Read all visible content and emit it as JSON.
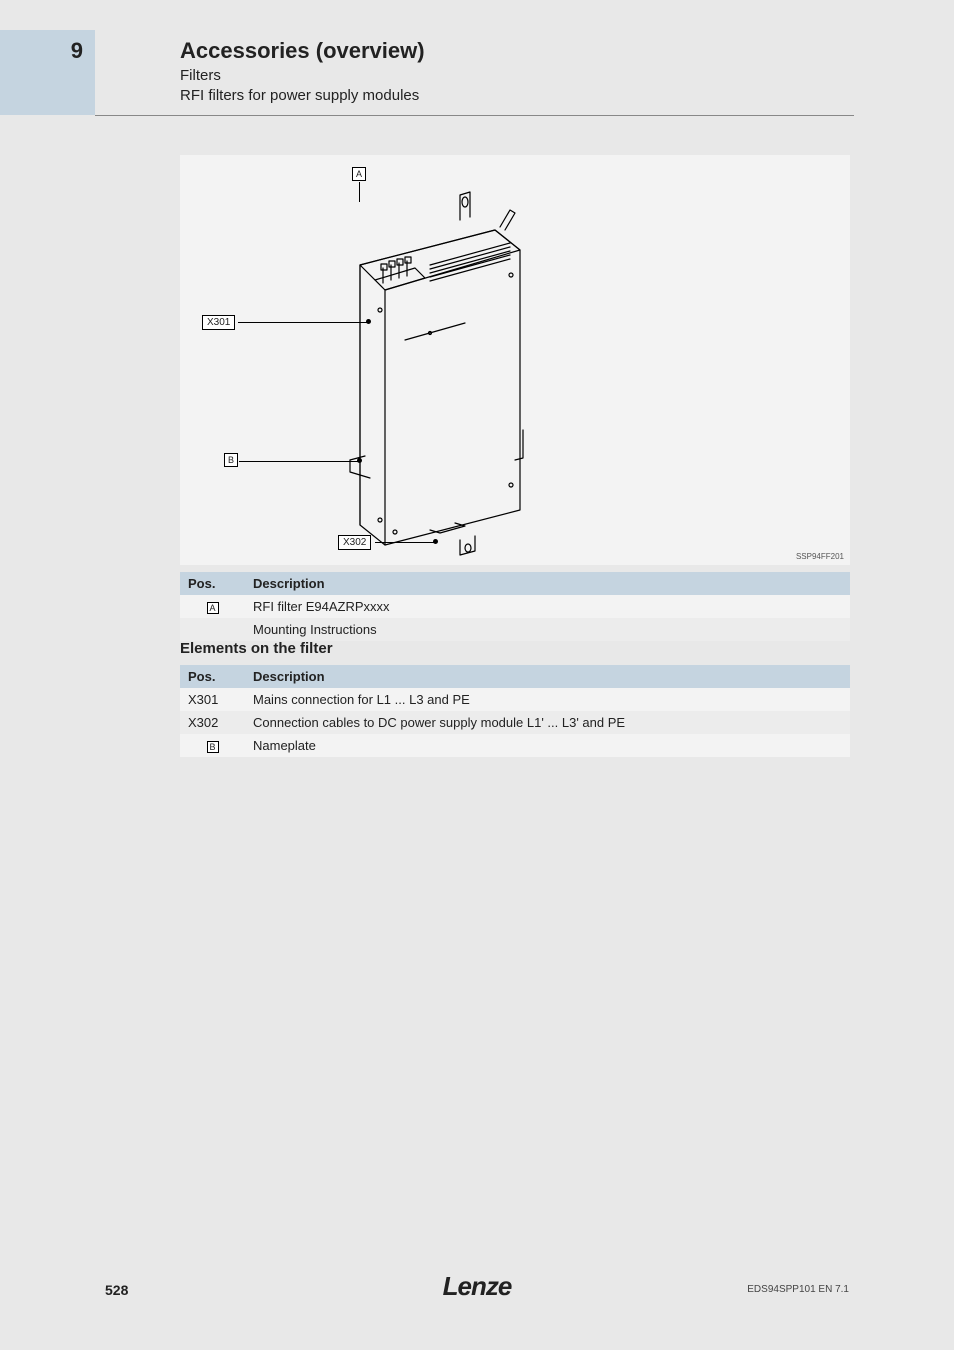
{
  "chapter_number": "9",
  "header": {
    "title": "Accessories (overview)",
    "sub1": "Filters",
    "sub2": "RFI filters for power supply modules"
  },
  "figure": {
    "id": "SSP94FF201",
    "callouts": {
      "A": "A",
      "B": "B",
      "X301": "X301",
      "X302": "X302"
    }
  },
  "table1": {
    "header_pos": "Pos.",
    "header_desc": "Description",
    "rows": [
      {
        "pos_type": "icon",
        "pos": "A",
        "desc": "RFI filter E94AZRPxxxx"
      },
      {
        "pos_type": "blank",
        "pos": "",
        "desc": "Mounting Instructions"
      }
    ]
  },
  "section_heading": "Elements on the filter",
  "table2": {
    "header_pos": "Pos.",
    "header_desc": "Description",
    "rows": [
      {
        "pos_type": "text",
        "pos": "X301",
        "desc": "Mains connection for L1 ... L3 and PE"
      },
      {
        "pos_type": "text",
        "pos": "X302",
        "desc": "Connection cables to DC power supply module L1' ... L3' and PE"
      },
      {
        "pos_type": "icon",
        "pos": "B",
        "desc": "Nameplate"
      }
    ]
  },
  "footer": {
    "page": "528",
    "logo": "Lenze",
    "doc": "EDS94SPP101 EN 7.1"
  }
}
